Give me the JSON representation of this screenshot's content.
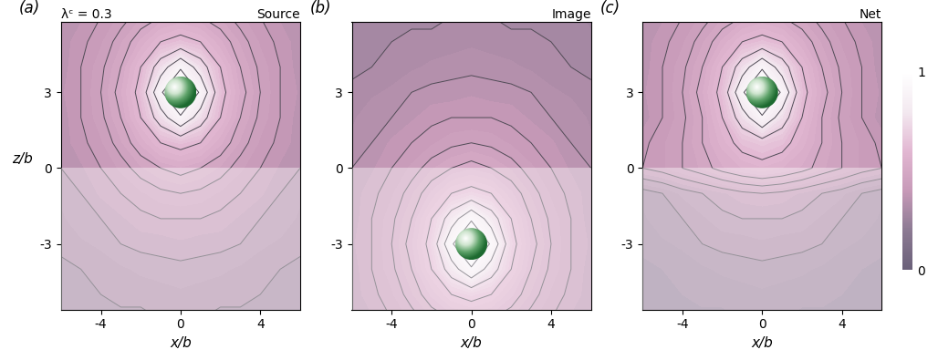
{
  "chart_data": [
    {
      "type": "contour",
      "panel_label": "(a)",
      "title": "Source",
      "annotation": "λᶜ = 0.3",
      "xlabel": "x/b",
      "ylabel": "z/b",
      "x": [
        -6,
        -5,
        -4,
        -3,
        -2,
        -1,
        0,
        1,
        2,
        3,
        4,
        5,
        6
      ],
      "z": [
        -6,
        -5,
        -4,
        -3,
        -2,
        -1,
        0,
        1,
        2,
        3,
        4,
        5,
        6
      ],
      "cells": [
        [
          0.27,
          0.28,
          0.28,
          0.29,
          0.29,
          0.3,
          0.3,
          0.3,
          0.29,
          0.29,
          0.28,
          0.28,
          0.27
        ],
        [
          0.28,
          0.29,
          0.3,
          0.31,
          0.31,
          0.31,
          0.32,
          0.31,
          0.31,
          0.31,
          0.3,
          0.29,
          0.28
        ],
        [
          0.29,
          0.3,
          0.31,
          0.32,
          0.33,
          0.34,
          0.34,
          0.34,
          0.33,
          0.32,
          0.31,
          0.3,
          0.29
        ],
        [
          0.31,
          0.32,
          0.33,
          0.35,
          0.36,
          0.36,
          0.37,
          0.36,
          0.36,
          0.35,
          0.33,
          0.32,
          0.31
        ],
        [
          0.32,
          0.34,
          0.35,
          0.37,
          0.39,
          0.4,
          0.4,
          0.4,
          0.39,
          0.37,
          0.35,
          0.34,
          0.32
        ],
        [
          0.33,
          0.35,
          0.38,
          0.4,
          0.42,
          0.44,
          0.45,
          0.44,
          0.42,
          0.4,
          0.38,
          0.35,
          0.33
        ],
        [
          0.35,
          0.37,
          0.4,
          0.43,
          0.47,
          0.5,
          0.52,
          0.5,
          0.47,
          0.43,
          0.4,
          0.37,
          0.35
        ],
        [
          0.36,
          0.39,
          0.42,
          0.47,
          0.53,
          0.6,
          0.63,
          0.6,
          0.53,
          0.47,
          0.42,
          0.39,
          0.36
        ],
        [
          0.36,
          0.4,
          0.44,
          0.5,
          0.6,
          0.75,
          0.89,
          0.75,
          0.6,
          0.5,
          0.44,
          0.4,
          0.36
        ],
        [
          0.37,
          0.4,
          0.45,
          0.52,
          0.63,
          0.89,
          1,
          0.89,
          0.63,
          0.52,
          0.45,
          0.4,
          0.37
        ],
        [
          0.36,
          0.4,
          0.44,
          0.5,
          0.6,
          0.75,
          0.89,
          0.75,
          0.6,
          0.5,
          0.44,
          0.4,
          0.36
        ],
        [
          0.36,
          0.39,
          0.42,
          0.47,
          0.53,
          0.6,
          0.63,
          0.6,
          0.53,
          0.47,
          0.42,
          0.39,
          0.36
        ],
        [
          0.35,
          0.37,
          0.4,
          0.43,
          0.47,
          0.5,
          0.52,
          0.5,
          0.47,
          0.43,
          0.4,
          0.37,
          0.35
        ]
      ],
      "levels": [
        0.3,
        0.35,
        0.4,
        0.45,
        0.5,
        0.6,
        0.7,
        0.8,
        0.9
      ],
      "particle": {
        "x": 0,
        "z": 3,
        "radius": 0.8
      },
      "xlim": [
        -6,
        6
      ],
      "ylim": [
        -5.6,
        5.8
      ],
      "xticks": [
        -4,
        0,
        4
      ],
      "yticks": [
        -3,
        0,
        3
      ]
    },
    {
      "type": "contour",
      "panel_label": "(b)",
      "title": "Image",
      "xlabel": "x/b",
      "x": [
        -6,
        -5,
        -4,
        -3,
        -2,
        -1,
        0,
        1,
        2,
        3,
        4,
        5,
        6
      ],
      "z": [
        -6,
        -5,
        -4,
        -3,
        -2,
        -1,
        0,
        1,
        2,
        3,
        4,
        5,
        6
      ],
      "cells": [
        [
          0.35,
          0.37,
          0.4,
          0.43,
          0.47,
          0.5,
          0.52,
          0.5,
          0.47,
          0.43,
          0.4,
          0.37,
          0.35
        ],
        [
          0.36,
          0.39,
          0.42,
          0.47,
          0.53,
          0.6,
          0.63,
          0.6,
          0.53,
          0.47,
          0.42,
          0.39,
          0.36
        ],
        [
          0.36,
          0.4,
          0.44,
          0.5,
          0.6,
          0.75,
          0.89,
          0.75,
          0.6,
          0.5,
          0.44,
          0.4,
          0.36
        ],
        [
          0.37,
          0.4,
          0.45,
          0.52,
          0.63,
          0.89,
          1,
          0.89,
          0.63,
          0.52,
          0.45,
          0.4,
          0.37
        ],
        [
          0.36,
          0.4,
          0.44,
          0.5,
          0.6,
          0.75,
          0.89,
          0.75,
          0.6,
          0.5,
          0.44,
          0.4,
          0.36
        ],
        [
          0.36,
          0.39,
          0.42,
          0.47,
          0.53,
          0.6,
          0.63,
          0.6,
          0.53,
          0.47,
          0.42,
          0.39,
          0.36
        ],
        [
          0.35,
          0.37,
          0.4,
          0.43,
          0.47,
          0.5,
          0.52,
          0.5,
          0.47,
          0.43,
          0.4,
          0.37,
          0.35
        ],
        [
          0.33,
          0.35,
          0.38,
          0.4,
          0.42,
          0.44,
          0.45,
          0.44,
          0.42,
          0.4,
          0.38,
          0.35,
          0.33
        ],
        [
          0.32,
          0.34,
          0.35,
          0.37,
          0.39,
          0.4,
          0.4,
          0.4,
          0.39,
          0.37,
          0.35,
          0.34,
          0.32
        ],
        [
          0.31,
          0.32,
          0.33,
          0.35,
          0.36,
          0.36,
          0.37,
          0.36,
          0.36,
          0.35,
          0.33,
          0.32,
          0.31
        ],
        [
          0.29,
          0.3,
          0.31,
          0.32,
          0.33,
          0.34,
          0.34,
          0.34,
          0.33,
          0.32,
          0.31,
          0.3,
          0.29
        ],
        [
          0.28,
          0.29,
          0.3,
          0.31,
          0.31,
          0.31,
          0.32,
          0.31,
          0.31,
          0.31,
          0.3,
          0.29,
          0.28
        ],
        [
          0.27,
          0.28,
          0.28,
          0.29,
          0.29,
          0.3,
          0.3,
          0.3,
          0.29,
          0.29,
          0.28,
          0.28,
          0.27
        ]
      ],
      "levels": [
        0.3,
        0.35,
        0.4,
        0.45,
        0.5,
        0.6,
        0.7,
        0.8,
        0.9
      ],
      "particle": {
        "x": 0,
        "z": -3,
        "radius": 0.8
      },
      "xlim": [
        -6,
        6
      ],
      "ylim": [
        -5.6,
        5.8
      ],
      "xticks": [
        -4,
        0,
        4
      ],
      "yticks": [
        -3,
        0,
        3
      ]
    },
    {
      "type": "contour",
      "panel_label": "(c)",
      "title": "Net",
      "xlabel": "x/b",
      "x": [
        -6,
        -5,
        -4,
        -3,
        -2,
        -1,
        0,
        1,
        2,
        3,
        4,
        5,
        6
      ],
      "z": [
        -6,
        -5,
        -4,
        -3,
        -2,
        -1,
        0,
        1,
        2,
        3,
        4,
        5,
        6
      ],
      "cells": [
        [
          0.22,
          0.23,
          0.23,
          0.24,
          0.24,
          0.25,
          0.25,
          0.25,
          0.24,
          0.24,
          0.23,
          0.23,
          0.22
        ],
        [
          0.23,
          0.24,
          0.25,
          0.26,
          0.26,
          0.26,
          0.27,
          0.26,
          0.26,
          0.26,
          0.25,
          0.24,
          0.23
        ],
        [
          0.24,
          0.25,
          0.26,
          0.27,
          0.28,
          0.29,
          0.29,
          0.29,
          0.28,
          0.27,
          0.26,
          0.25,
          0.24
        ],
        [
          0.26,
          0.27,
          0.28,
          0.3,
          0.31,
          0.31,
          0.32,
          0.31,
          0.31,
          0.3,
          0.28,
          0.27,
          0.26
        ],
        [
          0.27,
          0.29,
          0.3,
          0.32,
          0.34,
          0.35,
          0.35,
          0.35,
          0.34,
          0.32,
          0.3,
          0.29,
          0.27
        ],
        [
          0.28,
          0.3,
          0.33,
          0.35,
          0.37,
          0.39,
          0.4,
          0.39,
          0.37,
          0.35,
          0.33,
          0.3,
          0.28
        ],
        [
          0.4,
          0.42,
          0.45,
          0.48,
          0.52,
          0.55,
          0.57,
          0.55,
          0.52,
          0.48,
          0.45,
          0.42,
          0.4
        ],
        [
          0.39,
          0.42,
          0.45,
          0.5,
          0.56,
          0.63,
          0.66,
          0.63,
          0.56,
          0.5,
          0.45,
          0.42,
          0.39
        ],
        [
          0.36,
          0.4,
          0.44,
          0.5,
          0.6,
          0.75,
          0.89,
          0.75,
          0.6,
          0.5,
          0.44,
          0.4,
          0.36
        ],
        [
          0.37,
          0.4,
          0.45,
          0.52,
          0.63,
          0.89,
          1,
          0.89,
          0.63,
          0.52,
          0.45,
          0.4,
          0.37
        ],
        [
          0.36,
          0.4,
          0.44,
          0.5,
          0.6,
          0.75,
          0.89,
          0.75,
          0.6,
          0.5,
          0.44,
          0.4,
          0.36
        ],
        [
          0.36,
          0.39,
          0.42,
          0.47,
          0.53,
          0.6,
          0.63,
          0.6,
          0.53,
          0.47,
          0.42,
          0.39,
          0.36
        ],
        [
          0.35,
          0.37,
          0.4,
          0.43,
          0.47,
          0.5,
          0.52,
          0.5,
          0.47,
          0.43,
          0.4,
          0.37,
          0.35
        ]
      ],
      "levels": [
        0.3,
        0.35,
        0.4,
        0.45,
        0.5,
        0.6,
        0.7,
        0.8,
        0.9
      ],
      "particle": {
        "x": 0,
        "z": 3,
        "radius": 0.8
      },
      "xlim": [
        -6,
        6
      ],
      "ylim": [
        -5.6,
        5.8
      ],
      "xticks": [
        -4,
        0,
        4
      ],
      "yticks": [
        -3,
        0,
        3
      ]
    }
  ],
  "colorbar": {
    "range": [
      0,
      1
    ],
    "ticks": [
      0,
      1
    ]
  }
}
